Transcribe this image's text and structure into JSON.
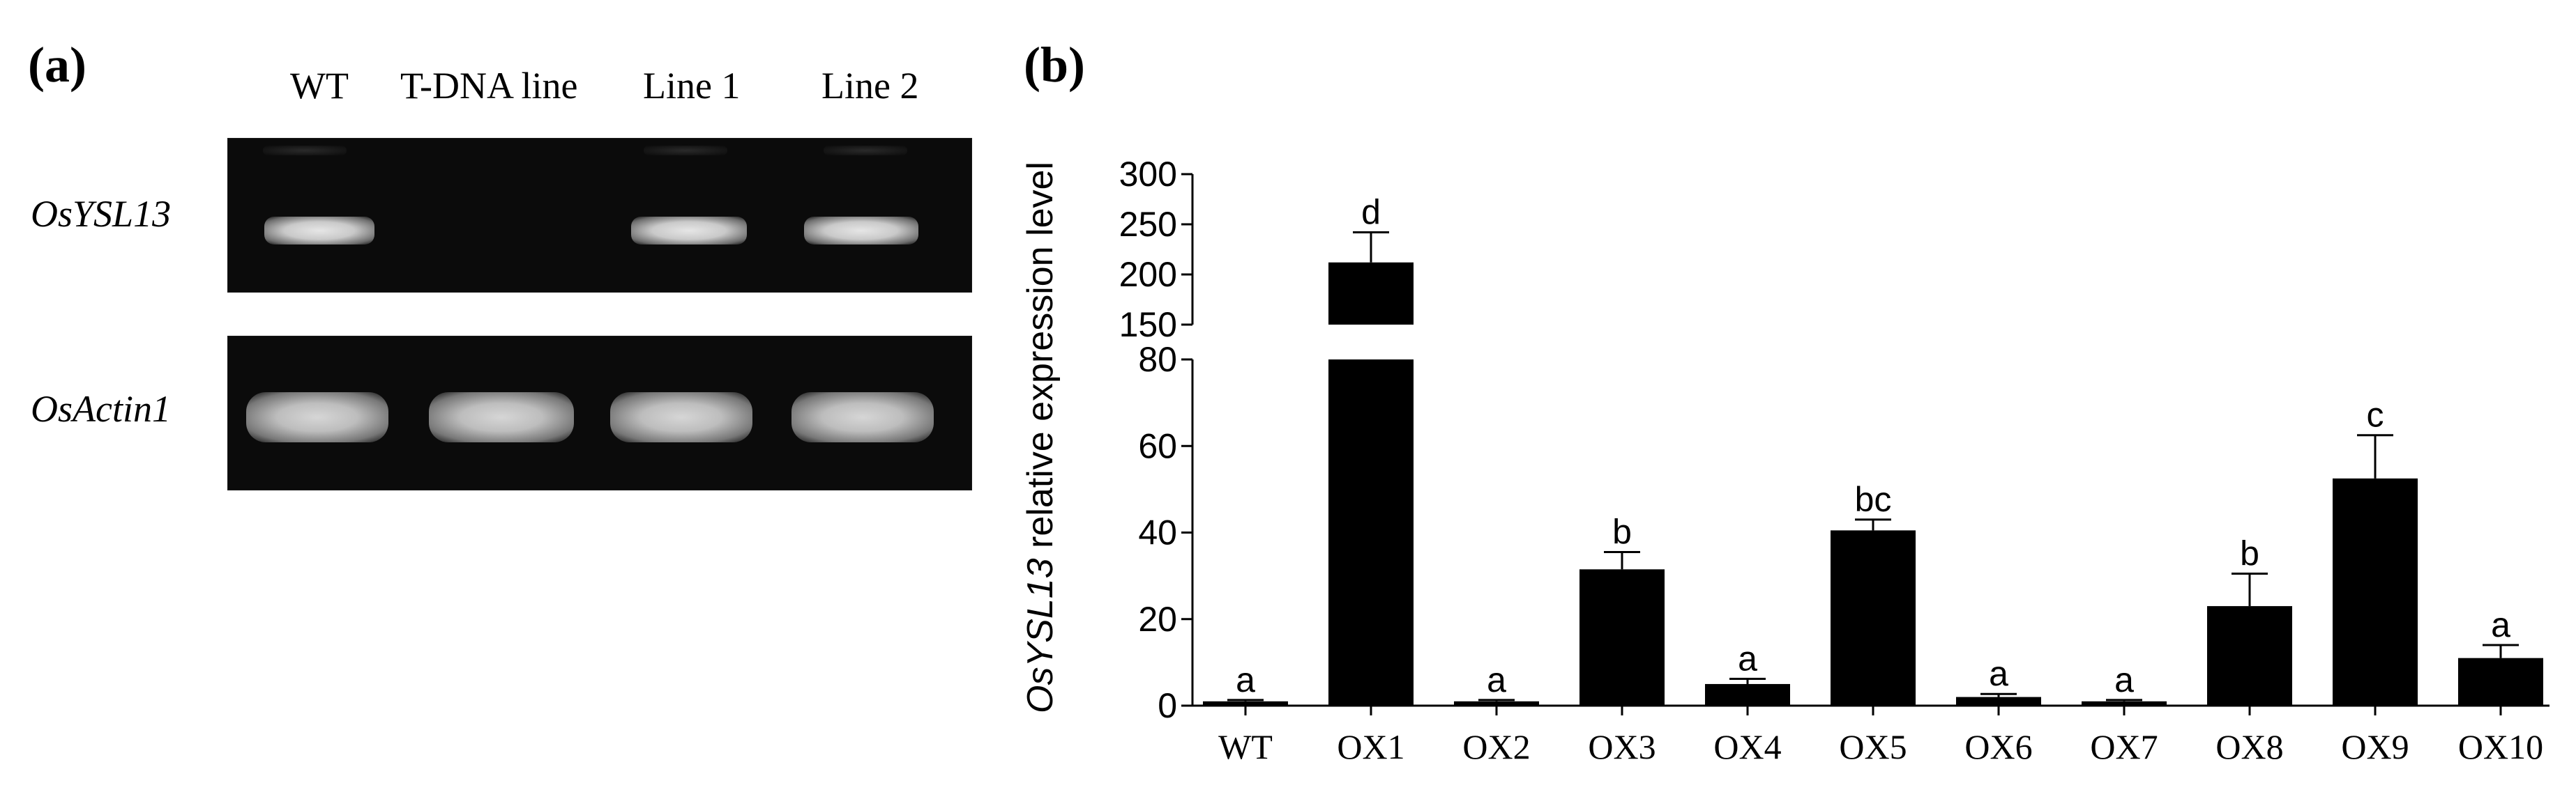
{
  "panel_a": {
    "label": "(a)",
    "lane_headers": [
      "WT",
      "T-DNA line",
      "Line 1",
      "Line 2"
    ],
    "rows": [
      {
        "label": "OsYSL13",
        "band_present": [
          true,
          false,
          true,
          true
        ]
      },
      {
        "label": "OsActin1",
        "band_present": [
          true,
          true,
          true,
          true
        ]
      }
    ]
  },
  "panel_b": {
    "label": "(b)"
  },
  "chart_data": {
    "type": "bar",
    "categories": [
      "WT",
      "OX1",
      "OX2",
      "OX3",
      "OX4",
      "OX5",
      "OX6",
      "OX7",
      "OX8",
      "OX9",
      "OX10"
    ],
    "values": [
      1,
      212,
      1,
      31.5,
      5,
      40.5,
      2,
      1,
      23,
      52.5,
      11
    ],
    "errors": [
      0.3,
      30,
      0.3,
      4,
      1.2,
      2.5,
      0.7,
      0.3,
      7.5,
      10,
      3
    ],
    "significance": [
      "a",
      "d",
      "a",
      "b",
      "a",
      "bc",
      "a",
      "a",
      "b",
      "c",
      "a"
    ],
    "ylabel_italic": "OsYSL13",
    "ylabel_rest": " relative expression level",
    "axis_break": {
      "lower_max": 80,
      "upper_min": 150
    },
    "ylim_lower": [
      0,
      80
    ],
    "ylim_upper": [
      150,
      300
    ],
    "yticks_lower": [
      0,
      20,
      40,
      60,
      80
    ],
    "yticks_upper": [
      150,
      200,
      250,
      300
    ],
    "bar_color": "#000000",
    "grid": false
  }
}
